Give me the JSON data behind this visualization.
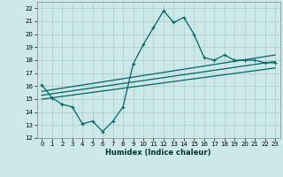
{
  "title": "",
  "xlabel": "Humidex (Indice chaleur)",
  "bg_color": "#cce8e8",
  "grid_color": "#aacccc",
  "line_color": "#006666",
  "xlim": [
    -0.5,
    23.5
  ],
  "ylim": [
    12,
    22.5
  ],
  "xticks": [
    0,
    1,
    2,
    3,
    4,
    5,
    6,
    7,
    8,
    9,
    10,
    11,
    12,
    13,
    14,
    15,
    16,
    17,
    18,
    19,
    20,
    21,
    22,
    23
  ],
  "yticks": [
    12,
    13,
    14,
    15,
    16,
    17,
    18,
    19,
    20,
    21,
    22
  ],
  "main_series_x": [
    0,
    1,
    2,
    3,
    4,
    5,
    6,
    7,
    8,
    9,
    10,
    11,
    12,
    13,
    14,
    15,
    16,
    17,
    18,
    19,
    20,
    21,
    22,
    23
  ],
  "main_series_y": [
    16.1,
    15.1,
    14.6,
    14.4,
    13.1,
    13.3,
    12.5,
    13.3,
    14.4,
    17.7,
    19.2,
    20.5,
    21.8,
    20.9,
    21.3,
    20.0,
    18.2,
    18.0,
    18.4,
    18.0,
    18.0,
    18.0,
    17.8,
    17.8
  ],
  "line1_x": [
    0,
    23
  ],
  "line1_y": [
    15.0,
    17.4
  ],
  "line2_x": [
    0,
    23
  ],
  "line2_y": [
    15.3,
    17.9
  ],
  "line3_x": [
    0,
    23
  ],
  "line3_y": [
    15.6,
    18.4
  ],
  "xlabel_fontsize": 6,
  "tick_fontsize": 5
}
